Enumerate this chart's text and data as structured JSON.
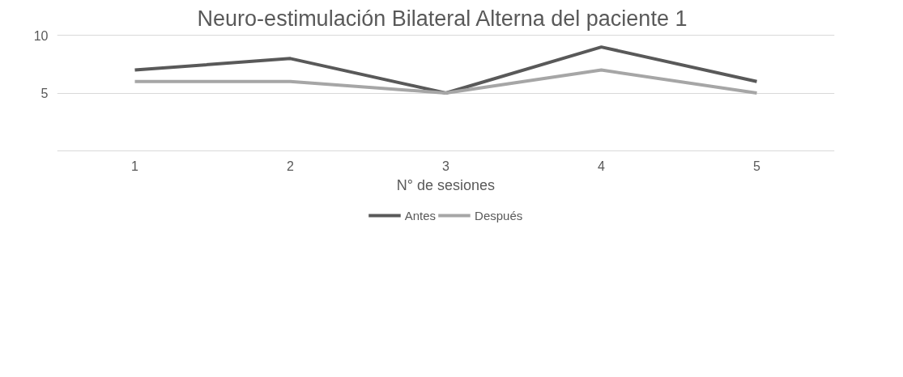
{
  "chart_data": {
    "type": "line",
    "title": "Neuro-estimulación Bilateral Alterna  del paciente 1",
    "xlabel": "N° de sesiones",
    "categories": [
      "1",
      "2",
      "3",
      "4",
      "5"
    ],
    "series": [
      {
        "name": "Antes",
        "color": "#595959",
        "values": [
          7,
          8,
          5,
          9,
          6
        ]
      },
      {
        "name": "Después",
        "color": "#a6a6a6",
        "values": [
          6,
          6,
          5,
          7,
          5
        ]
      }
    ],
    "ylim": [
      0,
      10
    ],
    "yticks": [
      10,
      5,
      {
        "value": 0,
        "label": null
      }
    ],
    "grid": "y",
    "legend": "bottom",
    "line_style": "solid"
  }
}
